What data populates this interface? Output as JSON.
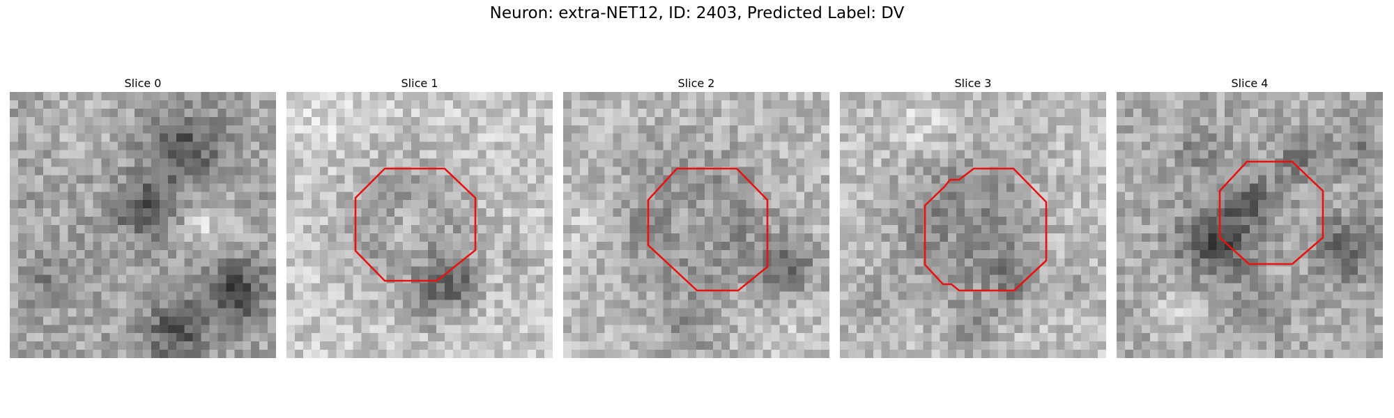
{
  "figure": {
    "title": "Neuron: extra-NET12, ID: 2403, Predicted Label: DV"
  },
  "slices": [
    {
      "title": "Slice 0",
      "roi_shown": false
    },
    {
      "title": "Slice 1",
      "roi_shown": true
    },
    {
      "title": "Slice 2",
      "roi_shown": true
    },
    {
      "title": "Slice 3",
      "roi_shown": true
    },
    {
      "title": "Slice 4",
      "roi_shown": true
    }
  ],
  "colors": {
    "roi_outline": "#e8120f",
    "colormap": "gray"
  }
}
